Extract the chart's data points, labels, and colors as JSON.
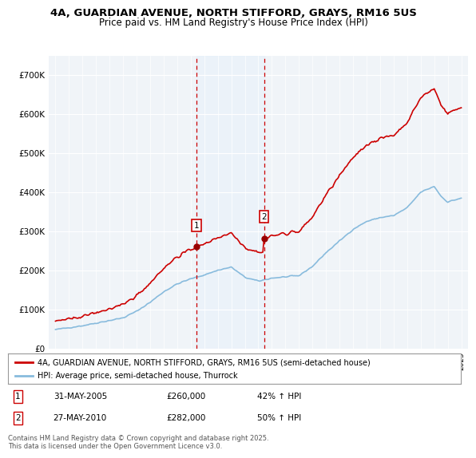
{
  "title_line1": "4A, GUARDIAN AVENUE, NORTH STIFFORD, GRAYS, RM16 5US",
  "title_line2": "Price paid vs. HM Land Registry's House Price Index (HPI)",
  "legend_line1": "4A, GUARDIAN AVENUE, NORTH STIFFORD, GRAYS, RM16 5US (semi-detached house)",
  "legend_line2": "HPI: Average price, semi-detached house, Thurrock",
  "annotation_text": "Contains HM Land Registry data © Crown copyright and database right 2025.\nThis data is licensed under the Open Government Licence v3.0.",
  "marker1_date": "31-MAY-2005",
  "marker1_price": "£260,000",
  "marker1_hpi": "42% ↑ HPI",
  "marker2_date": "27-MAY-2010",
  "marker2_price": "£282,000",
  "marker2_hpi": "50% ↑ HPI",
  "color_property": "#cc0000",
  "color_hpi": "#88bbdd",
  "color_span": "#ddeeff",
  "color_marker_line": "#cc0000",
  "ylim_max": 750000,
  "background_color": "#ffffff",
  "plot_bg_color": "#f0f4f8",
  "sale1_year_f": 2005.416,
  "sale2_year_f": 2010.416,
  "sale1_price": 260000,
  "sale2_price": 282000,
  "hpi_seed": 42,
  "hpi_noise_scale": 1200,
  "prop_noise_scale": 2500
}
